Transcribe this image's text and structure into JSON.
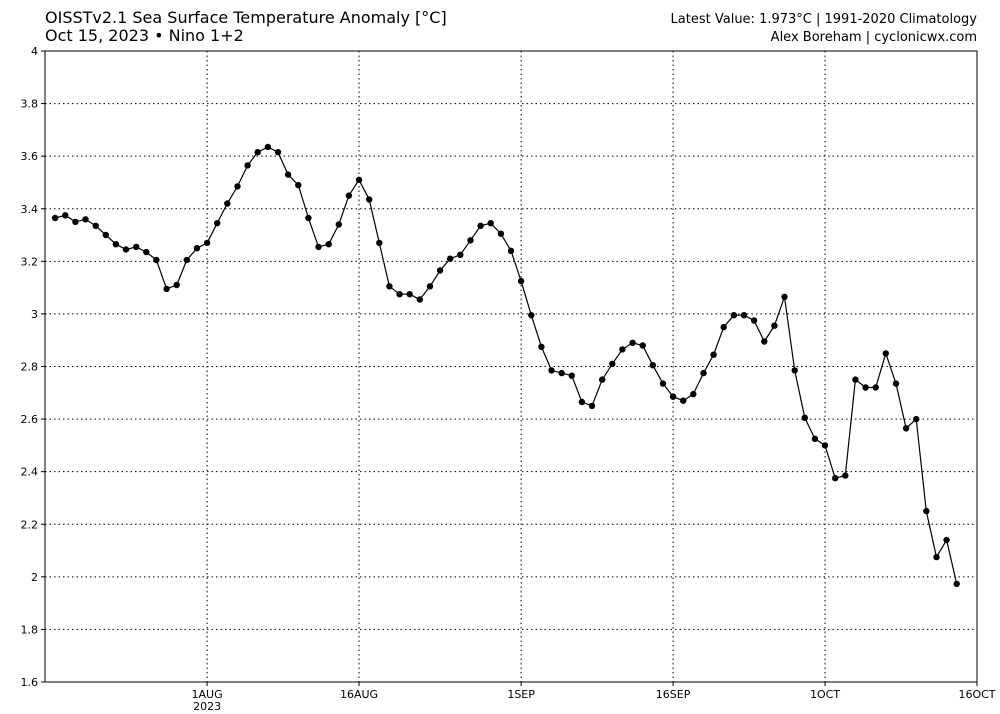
{
  "header": {
    "title": "OISSTv2.1 Sea Surface Temperature Anomaly [°C]",
    "subtitle_date": "Oct 15, 2023",
    "subtitle_bullet": "•",
    "subtitle_region": "Nino 1+2",
    "latest_value": "Latest Value: 1.973°C | 1991-2020 Climatology",
    "credit": "Alex Boreham | cyclonicwx.com"
  },
  "chart_data": {
    "type": "line",
    "title": "OISSTv2.1 Sea Surface Temperature Anomaly [°C]",
    "xlabel": "",
    "ylabel": "",
    "x_start": "2023-07-17",
    "xlim": [
      "2023-07-16",
      "2023-10-16"
    ],
    "ylim": [
      1.6,
      4.0
    ],
    "yticks": [
      "4",
      "3.8",
      "3.6",
      "3.4",
      "3.2",
      "3",
      "2.8",
      "2.6",
      "2.4",
      "2.2",
      "2",
      "1.8",
      "1.6"
    ],
    "xticks": [
      {
        "date": "2023-08-01",
        "label": "1AUG",
        "sublabel": "2023"
      },
      {
        "date": "2023-08-16",
        "label": "16AUG",
        "sublabel": ""
      },
      {
        "date": "2023-09-01",
        "label": "1SEP",
        "sublabel": ""
      },
      {
        "date": "2023-09-16",
        "label": "16SEP",
        "sublabel": ""
      },
      {
        "date": "2023-10-01",
        "label": "1OCT",
        "sublabel": ""
      },
      {
        "date": "2023-10-16",
        "label": "16OCT",
        "sublabel": ""
      }
    ],
    "grid": true,
    "grid_style": "dotted",
    "marker": "circle",
    "line_color": "#000000",
    "values": [
      3.365,
      3.375,
      3.35,
      3.36,
      3.335,
      3.3,
      3.265,
      3.245,
      3.255,
      3.235,
      3.205,
      3.095,
      3.11,
      3.205,
      3.25,
      3.27,
      3.345,
      3.42,
      3.485,
      3.565,
      3.615,
      3.635,
      3.615,
      3.53,
      3.49,
      3.365,
      3.255,
      3.265,
      3.34,
      3.45,
      3.51,
      3.435,
      3.27,
      3.105,
      3.075,
      3.075,
      3.055,
      3.105,
      3.165,
      3.21,
      3.225,
      3.28,
      3.335,
      3.345,
      3.305,
      3.24,
      3.125,
      2.995,
      2.875,
      2.785,
      2.775,
      2.765,
      2.665,
      2.65,
      2.75,
      2.81,
      2.865,
      2.89,
      2.88,
      2.805,
      2.735,
      2.685,
      2.67,
      2.695,
      2.775,
      2.845,
      2.95,
      2.995,
      2.995,
      2.975,
      2.895,
      2.955,
      3.065,
      2.785,
      2.605,
      2.525,
      2.5,
      2.375,
      2.385,
      2.75,
      2.72,
      2.72,
      2.85,
      2.735,
      2.565,
      2.6,
      2.25,
      2.075,
      2.14,
      1.973
    ]
  }
}
